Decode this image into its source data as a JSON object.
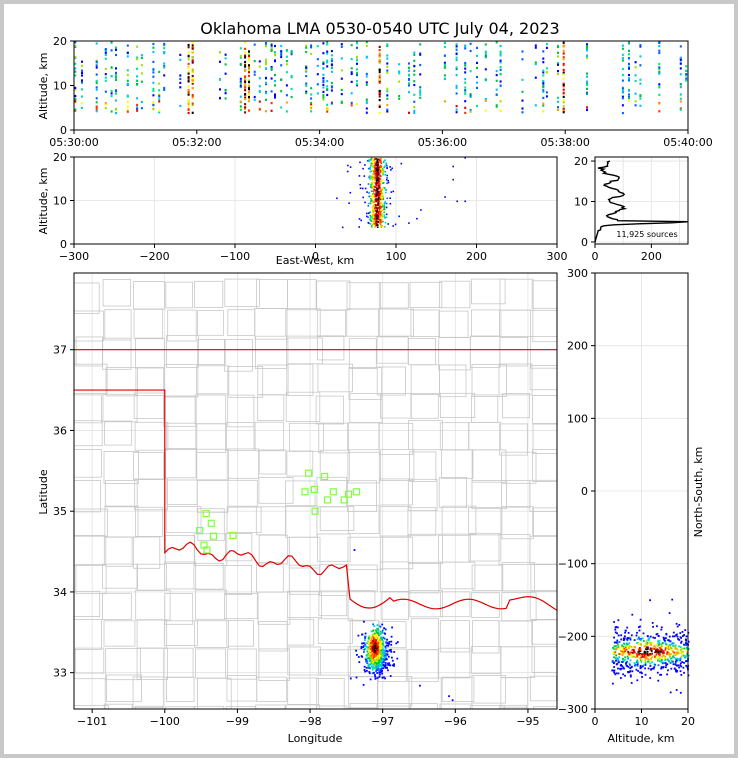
{
  "title": "Oklahoma LMA 0530-0540 UTC July 04, 2023",
  "chart_data": [
    {
      "id": "time-altitude",
      "type": "heatmap",
      "ylabel": "Altitude, km",
      "xlabel": "",
      "x_ticks": [
        "05:30:00",
        "05:32:00",
        "05:34:00",
        "05:36:00",
        "05:38:00",
        "05:40:00"
      ],
      "x_minutes": [
        0,
        2,
        4,
        6,
        8,
        10
      ],
      "xlim_minutes": [
        0,
        10
      ],
      "y_ticks": [
        0,
        10,
        20
      ],
      "ylim": [
        0,
        20
      ]
    },
    {
      "id": "ew-altitude",
      "type": "heatmap",
      "xlabel": "East-West, km",
      "ylabel": "Altitude, km",
      "xlim": [
        -300,
        300
      ],
      "x_ticks": [
        -300,
        -200,
        -100,
        0,
        100,
        200,
        300
      ],
      "x_tick_labels": [
        "−300",
        "−200",
        "−100",
        "0",
        "100",
        "200",
        "300"
      ],
      "ylim": [
        0,
        20
      ],
      "y_ticks": [
        0,
        10,
        20
      ],
      "grid": true
    },
    {
      "id": "altitude-histogram",
      "type": "line",
      "annotation": "11,925 sources",
      "xlim": [
        0,
        330
      ],
      "x_ticks": [
        0,
        200
      ],
      "ylim": [
        -0.5,
        21
      ],
      "y_ticks": [
        0,
        10,
        20
      ],
      "grid": true
    },
    {
      "id": "plan-view",
      "type": "scatter",
      "xlabel": "Longitude",
      "ylabel": "Latitude",
      "xlim": [
        -101.25,
        -94.6
      ],
      "ylim": [
        32.55,
        37.95
      ],
      "x_ticks": [
        -101,
        -100,
        -99,
        -98,
        -97,
        -96,
        -95
      ],
      "x_tick_labels": [
        "−101",
        "−100",
        "−99",
        "−98",
        "−97",
        "−96",
        "−95"
      ],
      "y_ticks": [
        33,
        34,
        35,
        36,
        37
      ],
      "grid": true,
      "stations": [
        {
          "lon": -99.52,
          "lat": 34.76
        },
        {
          "lon": -99.43,
          "lat": 34.97
        },
        {
          "lon": -99.36,
          "lat": 34.85
        },
        {
          "lon": -99.33,
          "lat": 34.69
        },
        {
          "lon": -99.46,
          "lat": 34.58
        },
        {
          "lon": -99.42,
          "lat": 34.52
        },
        {
          "lon": -99.06,
          "lat": 34.7
        },
        {
          "lon": -98.02,
          "lat": 35.47
        },
        {
          "lon": -97.94,
          "lat": 35.27
        },
        {
          "lon": -98.07,
          "lat": 35.24
        },
        {
          "lon": -97.93,
          "lat": 35.0
        },
        {
          "lon": -97.8,
          "lat": 35.43
        },
        {
          "lon": -97.76,
          "lat": 35.14
        },
        {
          "lon": -97.68,
          "lat": 35.24
        },
        {
          "lon": -97.53,
          "lat": 35.14
        },
        {
          "lon": -97.47,
          "lat": 35.21
        },
        {
          "lon": -97.36,
          "lat": 35.24
        }
      ]
    },
    {
      "id": "altitude-northsouth",
      "type": "heatmap",
      "xlabel": "Altitude, km",
      "ylabel": "North-South, km",
      "xlim": [
        0,
        20
      ],
      "x_ticks": [
        0,
        10,
        20
      ],
      "ylim": [
        -300,
        300
      ],
      "y_ticks": [
        -300,
        -200,
        -100,
        0,
        100,
        200,
        300
      ],
      "y_tick_labels": [
        "−300",
        "−200",
        "−100",
        "0",
        "100",
        "200",
        "300"
      ],
      "grid": true
    }
  ]
}
